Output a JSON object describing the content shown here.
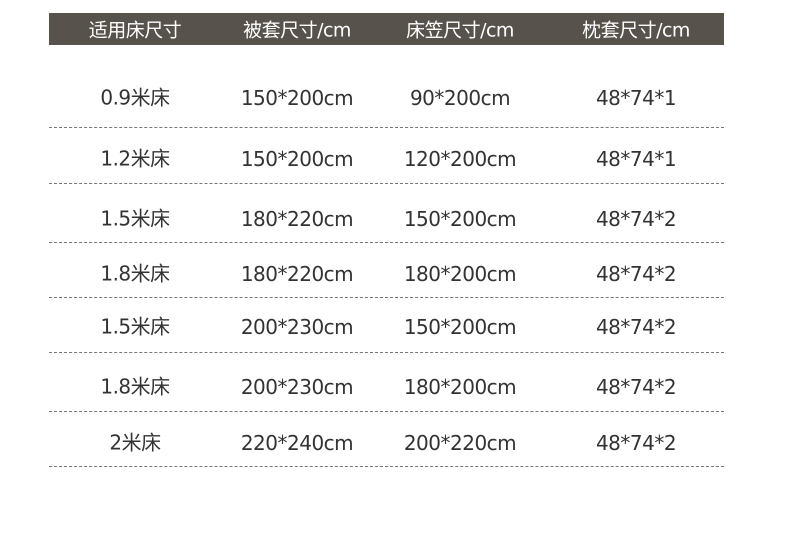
{
  "table": {
    "header": [
      "适用床尺寸",
      "被套尺寸/cm",
      "床笠尺寸/cm",
      "枕套尺寸/cm"
    ],
    "rows": [
      [
        "0.9米床",
        "150*200cm",
        "90*200cm",
        "48*74*1"
      ],
      [
        "1.2米床",
        "150*200cm",
        "120*200cm",
        "48*74*1"
      ],
      [
        "1.5米床",
        "180*220cm",
        "150*200cm",
        "48*74*2"
      ],
      [
        "1.8米床",
        "180*220cm",
        "180*200cm",
        "48*74*2"
      ],
      [
        "1.5米床",
        "200*230cm",
        "150*200cm",
        "48*74*2"
      ],
      [
        "1.8米床",
        "200*230cm",
        "180*200cm",
        "48*74*2"
      ],
      [
        "2米床",
        "220*240cm",
        "200*220cm",
        "48*74*2"
      ]
    ]
  }
}
